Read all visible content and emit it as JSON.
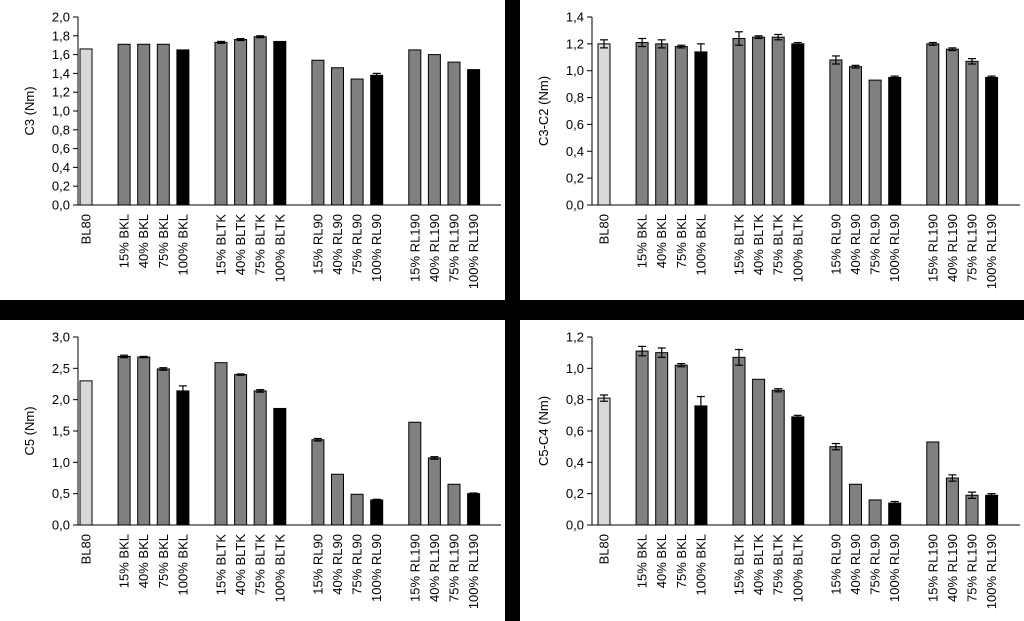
{
  "chart_data": [
    {
      "type": "bar",
      "ylabel": "C3 (Nm)",
      "ylim": [
        0,
        2.0
      ],
      "ytick_step": 0.2,
      "categories": [
        "BL80",
        "15% BKL",
        "40% BKL",
        "75% BKL",
        "100% BKL",
        "15% BLTK",
        "40% BLTK",
        "75% BLTK",
        "100% BLTK",
        "15% RL90",
        "40% RL90",
        "75% RL90",
        "100% RL90",
        "15% RL190",
        "40% RL190",
        "75% RL190",
        "100% RL190"
      ],
      "values": [
        1.66,
        1.71,
        1.71,
        1.71,
        1.65,
        1.73,
        1.76,
        1.79,
        1.74,
        1.54,
        1.46,
        1.34,
        1.38,
        1.65,
        1.6,
        1.52,
        1.44
      ],
      "errors": [
        0.0,
        0.0,
        0.0,
        0.0,
        0.0,
        0.01,
        0.01,
        0.01,
        0.0,
        0.0,
        0.0,
        0.0,
        0.02,
        0.0,
        0.0,
        0.0,
        0.0
      ],
      "colors": [
        "#d9d9d9",
        "#808080",
        "#808080",
        "#808080",
        "#000000",
        "#808080",
        "#808080",
        "#808080",
        "#000000",
        "#808080",
        "#808080",
        "#808080",
        "#000000",
        "#808080",
        "#808080",
        "#808080",
        "#000000"
      ],
      "grid": false
    },
    {
      "type": "bar",
      "ylabel": "C3-C2 (Nm)",
      "ylim": [
        0,
        1.4
      ],
      "ytick_step": 0.2,
      "categories": [
        "BL80",
        "15% BKL",
        "40% BKL",
        "75% BKL",
        "100% BKL",
        "15% BLTK",
        "40% BLTK",
        "75% BLTK",
        "100% BLTK",
        "15% RL90",
        "40% RL90",
        "75% RL90",
        "100% RL90",
        "15% RL190",
        "40% RL190",
        "75% RL190",
        "100% RL190"
      ],
      "values": [
        1.2,
        1.21,
        1.2,
        1.18,
        1.14,
        1.24,
        1.25,
        1.25,
        1.2,
        1.08,
        1.03,
        0.93,
        0.95,
        1.2,
        1.16,
        1.07,
        0.95
      ],
      "errors": [
        0.03,
        0.03,
        0.03,
        0.01,
        0.06,
        0.05,
        0.01,
        0.02,
        0.01,
        0.03,
        0.01,
        0.0,
        0.01,
        0.01,
        0.01,
        0.02,
        0.01
      ],
      "colors": [
        "#d9d9d9",
        "#808080",
        "#808080",
        "#808080",
        "#000000",
        "#808080",
        "#808080",
        "#808080",
        "#000000",
        "#808080",
        "#808080",
        "#808080",
        "#000000",
        "#808080",
        "#808080",
        "#808080",
        "#000000"
      ],
      "grid": false
    },
    {
      "type": "bar",
      "ylabel": "C5 (Nm)",
      "ylim": [
        0,
        3.0
      ],
      "ytick_step": 0.5,
      "categories": [
        "BL80",
        "15% BKL",
        "40% BKL",
        "75% BKL",
        "100% BKL",
        "15% BLTK",
        "40% BLTK",
        "75% BLTK",
        "100% BLTK",
        "15% RL90",
        "40% RL90",
        "75% RL90",
        "100% RL90",
        "15% RL190",
        "40% RL190",
        "75% RL190",
        "100% RL190"
      ],
      "values": [
        2.3,
        2.69,
        2.68,
        2.49,
        2.14,
        2.59,
        2.4,
        2.14,
        1.86,
        1.36,
        0.81,
        0.49,
        0.4,
        1.64,
        1.07,
        0.65,
        0.5
      ],
      "errors": [
        0.0,
        0.02,
        0.01,
        0.02,
        0.08,
        0.0,
        0.01,
        0.02,
        0.0,
        0.02,
        0.0,
        0.0,
        0.01,
        0.0,
        0.02,
        0.0,
        0.01
      ],
      "colors": [
        "#d9d9d9",
        "#808080",
        "#808080",
        "#808080",
        "#000000",
        "#808080",
        "#808080",
        "#808080",
        "#000000",
        "#808080",
        "#808080",
        "#808080",
        "#000000",
        "#808080",
        "#808080",
        "#808080",
        "#000000"
      ],
      "grid": false
    },
    {
      "type": "bar",
      "ylabel": "C5-C4 (Nm)",
      "ylim": [
        0,
        1.2
      ],
      "ytick_step": 0.2,
      "categories": [
        "BL80",
        "15% BKL",
        "40% BKL",
        "75% BKL",
        "100% BKL",
        "15% BLTK",
        "40% BLTK",
        "75% BLTK",
        "100% BLTK",
        "15% RL90",
        "40% RL90",
        "75% RL90",
        "100% RL90",
        "15% RL190",
        "40% RL190",
        "75% RL190",
        "100% RL190"
      ],
      "values": [
        0.81,
        1.11,
        1.1,
        1.02,
        0.76,
        1.07,
        0.93,
        0.86,
        0.69,
        0.5,
        0.26,
        0.16,
        0.14,
        0.53,
        0.3,
        0.19,
        0.19
      ],
      "errors": [
        0.02,
        0.03,
        0.03,
        0.01,
        0.06,
        0.05,
        0.0,
        0.01,
        0.01,
        0.02,
        0.0,
        0.0,
        0.01,
        0.0,
        0.02,
        0.02,
        0.01
      ],
      "colors": [
        "#d9d9d9",
        "#808080",
        "#808080",
        "#808080",
        "#000000",
        "#808080",
        "#808080",
        "#808080",
        "#000000",
        "#808080",
        "#808080",
        "#808080",
        "#000000",
        "#808080",
        "#808080",
        "#808080",
        "#000000"
      ],
      "grid": false
    }
  ]
}
